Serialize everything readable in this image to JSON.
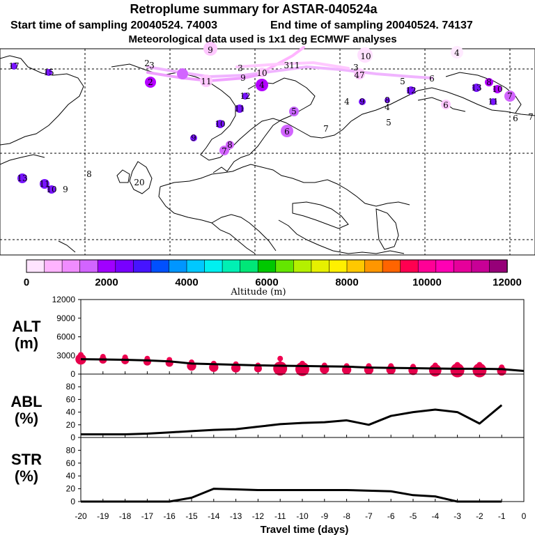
{
  "header": {
    "title": "Retroplume summary for ASTAR-040524a",
    "start_label": "Start time of sampling 20040524. 74003",
    "end_label": "End time of sampling 20040524. 74137",
    "met_label": "Meteorological data used is 1x1 deg ECMWF analyses"
  },
  "colorbar": {
    "tick_labels": [
      "0",
      "2000",
      "4000",
      "6000",
      "8000",
      "10000",
      "12000"
    ],
    "label": "Altitude (m)",
    "colors": [
      "#ffe4ff",
      "#ffb4ff",
      "#f08cff",
      "#d264ff",
      "#a000ff",
      "#7800ff",
      "#4614ff",
      "#0050ff",
      "#0096ff",
      "#00c8ff",
      "#00f0f0",
      "#00f0b4",
      "#00e678",
      "#00c800",
      "#64e600",
      "#b4f000",
      "#e6f000",
      "#fff000",
      "#ffc800",
      "#ff9600",
      "#ff6400",
      "#ff0050",
      "#ff0096",
      "#ff00b4",
      "#e6009b",
      "#c80096",
      "#960078"
    ]
  },
  "map": {
    "labels": [
      {
        "t": "9",
        "c": "#ffc8ff"
      },
      {
        "t": "10",
        "c": "#ffc8ff"
      },
      {
        "t": "4",
        "c": "#ffe0ff"
      },
      {
        "t": "17",
        "c": "#7814ff"
      },
      {
        "t": "15",
        "c": "#7814ff"
      },
      {
        "t": "2",
        "c": "#ffc8ff"
      },
      {
        "t": "3",
        "c": "#ffc8ff"
      },
      {
        "t": "2",
        "c": "#b400ff"
      },
      {
        "t": "11",
        "c": "#ffc8ff"
      },
      {
        "t": "9",
        "c": "#ffc8ff"
      },
      {
        "t": "10",
        "c": "#ffc8ff"
      },
      {
        "t": "3",
        "c": "#b400ff"
      },
      {
        "t": "4",
        "c": "#7814ff"
      },
      {
        "t": "311",
        "c": "#ffc8ff"
      },
      {
        "t": "3",
        "c": "#ffc8ff"
      },
      {
        "t": "47",
        "c": "#ffc8ff"
      },
      {
        "t": "5",
        "c": "#ffc8ff"
      },
      {
        "t": "6",
        "c": "#ffc8ff"
      },
      {
        "t": "12",
        "c": "#7814ff"
      },
      {
        "t": "11",
        "c": "#7814ff"
      },
      {
        "t": "10",
        "c": "#7814ff"
      },
      {
        "t": "5",
        "c": "#c864ff"
      },
      {
        "t": "6",
        "c": "#d264ff"
      },
      {
        "t": "9",
        "c": "#7814ff"
      },
      {
        "t": "7",
        "c": "#d264ff"
      },
      {
        "t": "8",
        "c": "#d264ff"
      },
      {
        "t": "4",
        "c": "#ffffff"
      },
      {
        "t": "9",
        "c": "#7814ff"
      },
      {
        "t": "8",
        "c": "#7814ff"
      },
      {
        "t": "4",
        "c": "#ffffff"
      },
      {
        "t": "5",
        "c": "#ffffff"
      },
      {
        "t": "13",
        "c": "#7814ff"
      },
      {
        "t": "6",
        "c": "#ffc8ff"
      },
      {
        "t": "11",
        "c": "#7814ff"
      },
      {
        "t": "8",
        "c": "#b400ff"
      },
      {
        "t": "10",
        "c": "#b400ff"
      },
      {
        "t": "12",
        "c": "#7814ff"
      },
      {
        "t": "7",
        "c": "#d264ff"
      },
      {
        "t": "7",
        "c": "#ffffff"
      },
      {
        "t": "6",
        "c": "#ffffff"
      },
      {
        "t": "7",
        "c": "#ffffff"
      },
      {
        "t": "13",
        "c": "#7814ff"
      },
      {
        "t": "11",
        "c": "#7814ff"
      },
      {
        "t": "10",
        "c": "#7814ff"
      },
      {
        "t": "9",
        "c": "#ffffff"
      },
      {
        "t": "8",
        "c": "#ffffff"
      },
      {
        "t": "20",
        "c": "#ffffff"
      }
    ]
  },
  "chart_data": [
    {
      "type": "line",
      "title": "ALT (m)",
      "panel_label_line1": "ALT",
      "panel_label_line2": "(m)",
      "xlabel": "Travel time (days)",
      "x": [
        -20,
        -19,
        -18,
        -17,
        -16,
        -15,
        -14,
        -13,
        -12,
        -11,
        -10,
        -9,
        -8,
        -7,
        -6,
        -5,
        -4,
        -3,
        -2,
        -1,
        0
      ],
      "x_tick_labels": [
        "-20",
        "-19",
        "-18",
        "-17",
        "-16",
        "-15",
        "-14",
        "-13",
        "-12",
        "-11",
        "-10",
        "-9",
        "-8",
        "-7",
        "-6",
        "-5",
        "-4",
        "-3",
        "-2",
        "-1",
        "0"
      ],
      "y_tick_labels": [
        "0",
        "3000",
        "6000",
        "9000",
        "12000"
      ],
      "ylim": [
        0,
        12000
      ],
      "xlim": [
        -20,
        0
      ],
      "series": [
        {
          "name": "mean altitude",
          "values": [
            2400,
            2350,
            2300,
            2200,
            2050,
            1700,
            1600,
            1500,
            1400,
            1350,
            1300,
            1250,
            1200,
            1050,
            1000,
            950,
            900,
            850,
            850,
            800,
            500
          ]
        }
      ],
      "spread": [
        {
          "x": -20,
          "y": 2400,
          "top": 3100
        },
        {
          "x": -19,
          "y": 2300,
          "top": 2800
        },
        {
          "x": -18,
          "y": 2200,
          "top": 2700
        },
        {
          "x": -17,
          "y": 2000,
          "top": 2500
        },
        {
          "x": -16,
          "y": 1800,
          "top": 2300
        },
        {
          "x": -15,
          "y": 1300,
          "top": 1900
        },
        {
          "x": -14,
          "y": 1100,
          "top": 1700
        },
        {
          "x": -13,
          "y": 1000,
          "top": 1600
        },
        {
          "x": -12,
          "y": 900,
          "top": 1400
        },
        {
          "x": -11,
          "y": 900,
          "top": 2500
        },
        {
          "x": -10,
          "y": 800,
          "top": 1700
        },
        {
          "x": -9,
          "y": 800,
          "top": 1400
        },
        {
          "x": -8,
          "y": 700,
          "top": 1300
        },
        {
          "x": -7,
          "y": 700,
          "top": 1300
        },
        {
          "x": -6,
          "y": 700,
          "top": 1300
        },
        {
          "x": -5,
          "y": 600,
          "top": 1200
        },
        {
          "x": -4,
          "y": 600,
          "top": 1400
        },
        {
          "x": -3,
          "y": 600,
          "top": 1500
        },
        {
          "x": -2,
          "y": 600,
          "top": 1500
        },
        {
          "x": -1,
          "y": 500,
          "top": 1100
        }
      ]
    },
    {
      "type": "line",
      "title": "ABL (%)",
      "panel_label_line1": "ABL",
      "panel_label_line2": "(%)",
      "x": [
        -20,
        -19,
        -18,
        -17,
        -16,
        -15,
        -14,
        -13,
        -12,
        -11,
        -10,
        -9,
        -8,
        -7,
        -6,
        -5,
        -4,
        -3,
        -2,
        -1
      ],
      "y_tick_labels": [
        "0",
        "20",
        "40",
        "60",
        "80"
      ],
      "ylim": [
        0,
        100
      ],
      "series": [
        {
          "name": "ABL fraction",
          "values": [
            5,
            5,
            5,
            6,
            8,
            10,
            12,
            13,
            17,
            21,
            23,
            24,
            27,
            20,
            34,
            40,
            44,
            40,
            22,
            51
          ]
        }
      ]
    },
    {
      "type": "line",
      "title": "STR (%)",
      "panel_label_line1": "STR",
      "panel_label_line2": "(%)",
      "x": [
        -20,
        -19,
        -18,
        -17,
        -16,
        -15,
        -14,
        -13,
        -12,
        -11,
        -10,
        -9,
        -8,
        -7,
        -6,
        -5,
        -4,
        -3,
        -2,
        -1
      ],
      "y_tick_labels": [
        "0",
        "20",
        "40",
        "60",
        "80"
      ],
      "ylim": [
        0,
        100
      ],
      "series": [
        {
          "name": "stratospheric fraction",
          "values": [
            0,
            0,
            0,
            0,
            0,
            6,
            20,
            19,
            18,
            18,
            18,
            18,
            18,
            17,
            16,
            10,
            8,
            0,
            0,
            0
          ]
        }
      ]
    }
  ]
}
